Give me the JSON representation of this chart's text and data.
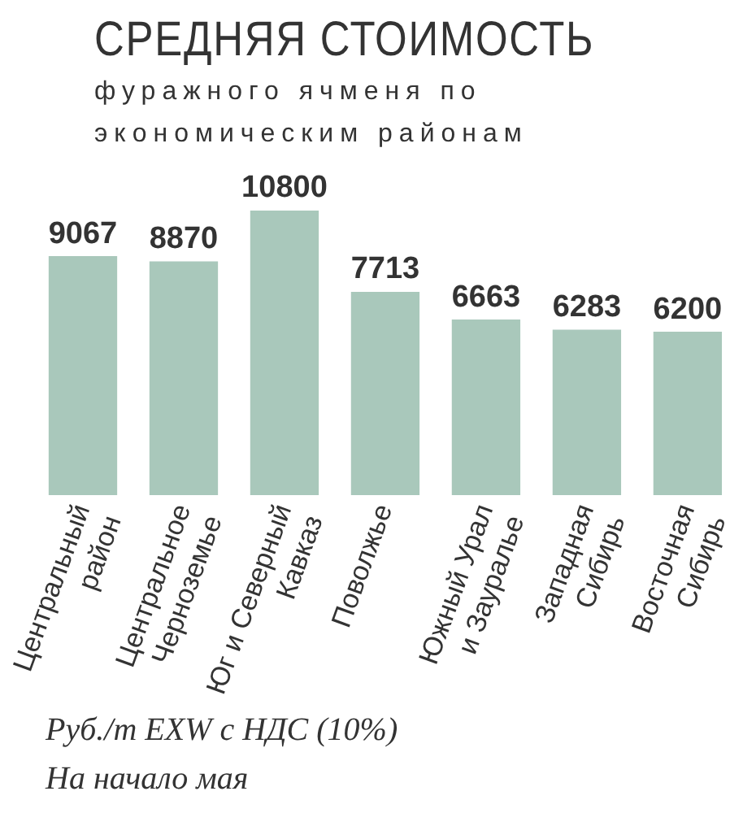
{
  "chart_data": {
    "type": "bar",
    "title": "СРЕДНЯЯ СТОИМОСТЬ",
    "subtitle": "фуражного ячменя по экономическим районам",
    "categories": [
      "Центральный район",
      "Центральное Черноземье",
      "Юг и Северный Кавказ",
      "Поволжье",
      "Южный Урал и Зауралье",
      "Западная Сибирь",
      "Восточная Сибирь"
    ],
    "values": [
      9067,
      8870,
      10800,
      7713,
      6663,
      6283,
      6200
    ],
    "color": "#a9c8bb",
    "data_labels": true,
    "legend": false,
    "grid": false,
    "annotations": [
      "Руб./т EXW с НДС (10%)",
      "На начало мая"
    ]
  }
}
